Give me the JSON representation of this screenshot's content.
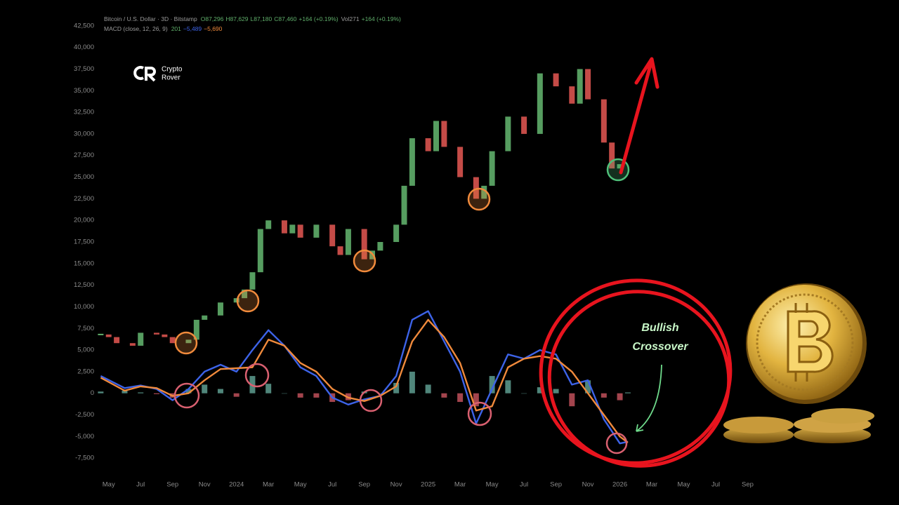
{
  "chart_data": {
    "type": "candlestick",
    "header": {
      "symbol": "Bitcoin / U.S. Dollar · 3D · Bitstamp",
      "ohlc": [
        "O87,296",
        "H87,629",
        "L87,180",
        "C87,460",
        "+164 (+0.19%)"
      ],
      "volume": [
        "Vol271",
        "+164 (+0.19%)"
      ]
    },
    "indicator": {
      "name": "MACD (close, 12, 26, 9)",
      "values": [
        "201",
        "−5,489",
        "−5,690"
      ]
    },
    "logo": [
      "Crypto",
      "Rover"
    ],
    "annotation": [
      "Bullish",
      "Crossover"
    ],
    "xlim": [
      -1,
      42
    ],
    "ylim": [
      -10000,
      45000
    ],
    "xticks": [
      {
        "value": 0,
        "label": "May"
      },
      {
        "value": 2,
        "label": "Jul"
      },
      {
        "value": 4,
        "label": "Sep"
      },
      {
        "value": 6,
        "label": "Nov"
      },
      {
        "value": 8,
        "label": "2024"
      },
      {
        "value": 10,
        "label": "Mar"
      },
      {
        "value": 12,
        "label": "May"
      },
      {
        "value": 14,
        "label": "Jul"
      },
      {
        "value": 16,
        "label": "Sep"
      },
      {
        "value": 18,
        "label": "Nov"
      },
      {
        "value": 20,
        "label": "2025"
      },
      {
        "value": 22,
        "label": "Mar"
      },
      {
        "value": 24,
        "label": "May"
      },
      {
        "value": 26,
        "label": "Jul"
      },
      {
        "value": 28,
        "label": "Sep"
      },
      {
        "value": 30,
        "label": "Nov"
      },
      {
        "value": 32,
        "label": "2026"
      },
      {
        "value": 34,
        "label": "Mar"
      },
      {
        "value": 36,
        "label": "May"
      },
      {
        "value": 38,
        "label": "Jul"
      },
      {
        "value": 40,
        "label": "Sep"
      }
    ],
    "yticks": [
      {
        "value": 42500,
        "label": "42,500"
      },
      {
        "value": 40000,
        "label": "40,000"
      },
      {
        "value": 37500,
        "label": "37,500"
      },
      {
        "value": 35000,
        "label": "35,000"
      },
      {
        "value": 32500,
        "label": "32,500"
      },
      {
        "value": 30000,
        "label": "30,000"
      },
      {
        "value": 27500,
        "label": "27,500"
      },
      {
        "value": 25000,
        "label": "25,000"
      },
      {
        "value": 22500,
        "label": "22,500"
      },
      {
        "value": 20000,
        "label": "20,000"
      },
      {
        "value": 17500,
        "label": "17,500"
      },
      {
        "value": 15000,
        "label": "15,000"
      },
      {
        "value": 12500,
        "label": "12,500"
      },
      {
        "value": 10000,
        "label": "10,000"
      },
      {
        "value": 7500,
        "label": "7,500"
      },
      {
        "value": 5000,
        "label": "5,000"
      },
      {
        "value": 2500,
        "label": "2,500"
      },
      0,
      {
        "value": -2500,
        "label": "-2,500"
      },
      {
        "value": -5000,
        "label": "-5,000"
      },
      {
        "value": -7500,
        "label": "-7,500"
      }
    ],
    "price": {
      "up_color": "#5fae6a",
      "down_color": "#d9534f",
      "x": [
        -0.5,
        0,
        0.5,
        1.5,
        2,
        3,
        3.5,
        4,
        5,
        5.5,
        6,
        7,
        8,
        8.5,
        9,
        9.5,
        10,
        11,
        11.5,
        12,
        13,
        14,
        14.5,
        15,
        16,
        16.5,
        17,
        18,
        18.5,
        19,
        20,
        20.5,
        21,
        22,
        23,
        23.5,
        24,
        25,
        26,
        27,
        28,
        29,
        29.5,
        30,
        31,
        31.5,
        32
      ],
      "values": [
        6800,
        6500,
        5800,
        5500,
        7000,
        6800,
        6500,
        5800,
        6200,
        8500,
        9000,
        10500,
        11000,
        12000,
        14000,
        19000,
        20000,
        18500,
        19500,
        18000,
        19500,
        17000,
        16000,
        19000,
        15500,
        16500,
        17500,
        19500,
        24000,
        29500,
        28000,
        31500,
        28500,
        25000,
        22500,
        24000,
        28000,
        32000,
        30000,
        37000,
        35500,
        33500,
        37500,
        34000,
        29000,
        26000,
        26500
      ]
    },
    "macd": {
      "color": "#3d63e8",
      "x": [
        -0.5,
        1,
        2,
        3,
        4,
        5,
        6,
        7,
        8,
        9,
        10,
        11,
        12,
        13,
        14,
        15,
        16,
        17,
        18,
        19,
        20,
        21,
        22,
        23,
        24,
        25,
        26,
        27,
        28,
        29,
        30,
        31,
        32,
        32.5
      ],
      "values": [
        2000,
        600,
        900,
        500,
        -800,
        500,
        2500,
        3300,
        2500,
        5000,
        7300,
        5500,
        3000,
        2000,
        -500,
        -1300,
        -700,
        -300,
        2000,
        8500,
        9500,
        6000,
        2500,
        -3500,
        500,
        4500,
        4000,
        5000,
        4500,
        1000,
        1500,
        -3000,
        -5800,
        -5600
      ]
    },
    "signal": {
      "color": "#f08a3c",
      "x": [
        -0.5,
        1,
        2,
        3,
        4,
        5,
        6,
        7,
        8,
        9,
        10,
        11,
        12,
        13,
        14,
        15,
        16,
        17,
        18,
        19,
        20,
        21,
        22,
        23,
        24,
        25,
        26,
        27,
        28,
        29,
        30,
        31,
        32,
        32.5
      ],
      "values": [
        1800,
        300,
        800,
        600,
        -300,
        0,
        1500,
        2800,
        2900,
        3000,
        6200,
        5500,
        3500,
        2500,
        500,
        -500,
        -900,
        -300,
        800,
        6000,
        8500,
        6500,
        3500,
        -2000,
        -1500,
        3000,
        4000,
        4300,
        4000,
        2500,
        0,
        -2500,
        -5000,
        -5700
      ]
    },
    "histogram": {
      "up_color": "#5e9e90",
      "down_color": "#c0505a",
      "x": [
        -0.5,
        1,
        2,
        3,
        4,
        5,
        6,
        7,
        8,
        9,
        10,
        11,
        12,
        13,
        14,
        15,
        16,
        17,
        18,
        19,
        20,
        21,
        22,
        23,
        24,
        25,
        26,
        27,
        28,
        29,
        30,
        31,
        32,
        32.5
      ],
      "values": [
        200,
        300,
        100,
        -100,
        -500,
        500,
        1000,
        500,
        -400,
        2000,
        1100,
        0,
        -500,
        -500,
        -1000,
        -800,
        200,
        0,
        1200,
        2500,
        1000,
        -500,
        -1000,
        -1500,
        2000,
        1500,
        0,
        700,
        500,
        -1500,
        1500,
        -500,
        -800,
        100
      ]
    }
  }
}
